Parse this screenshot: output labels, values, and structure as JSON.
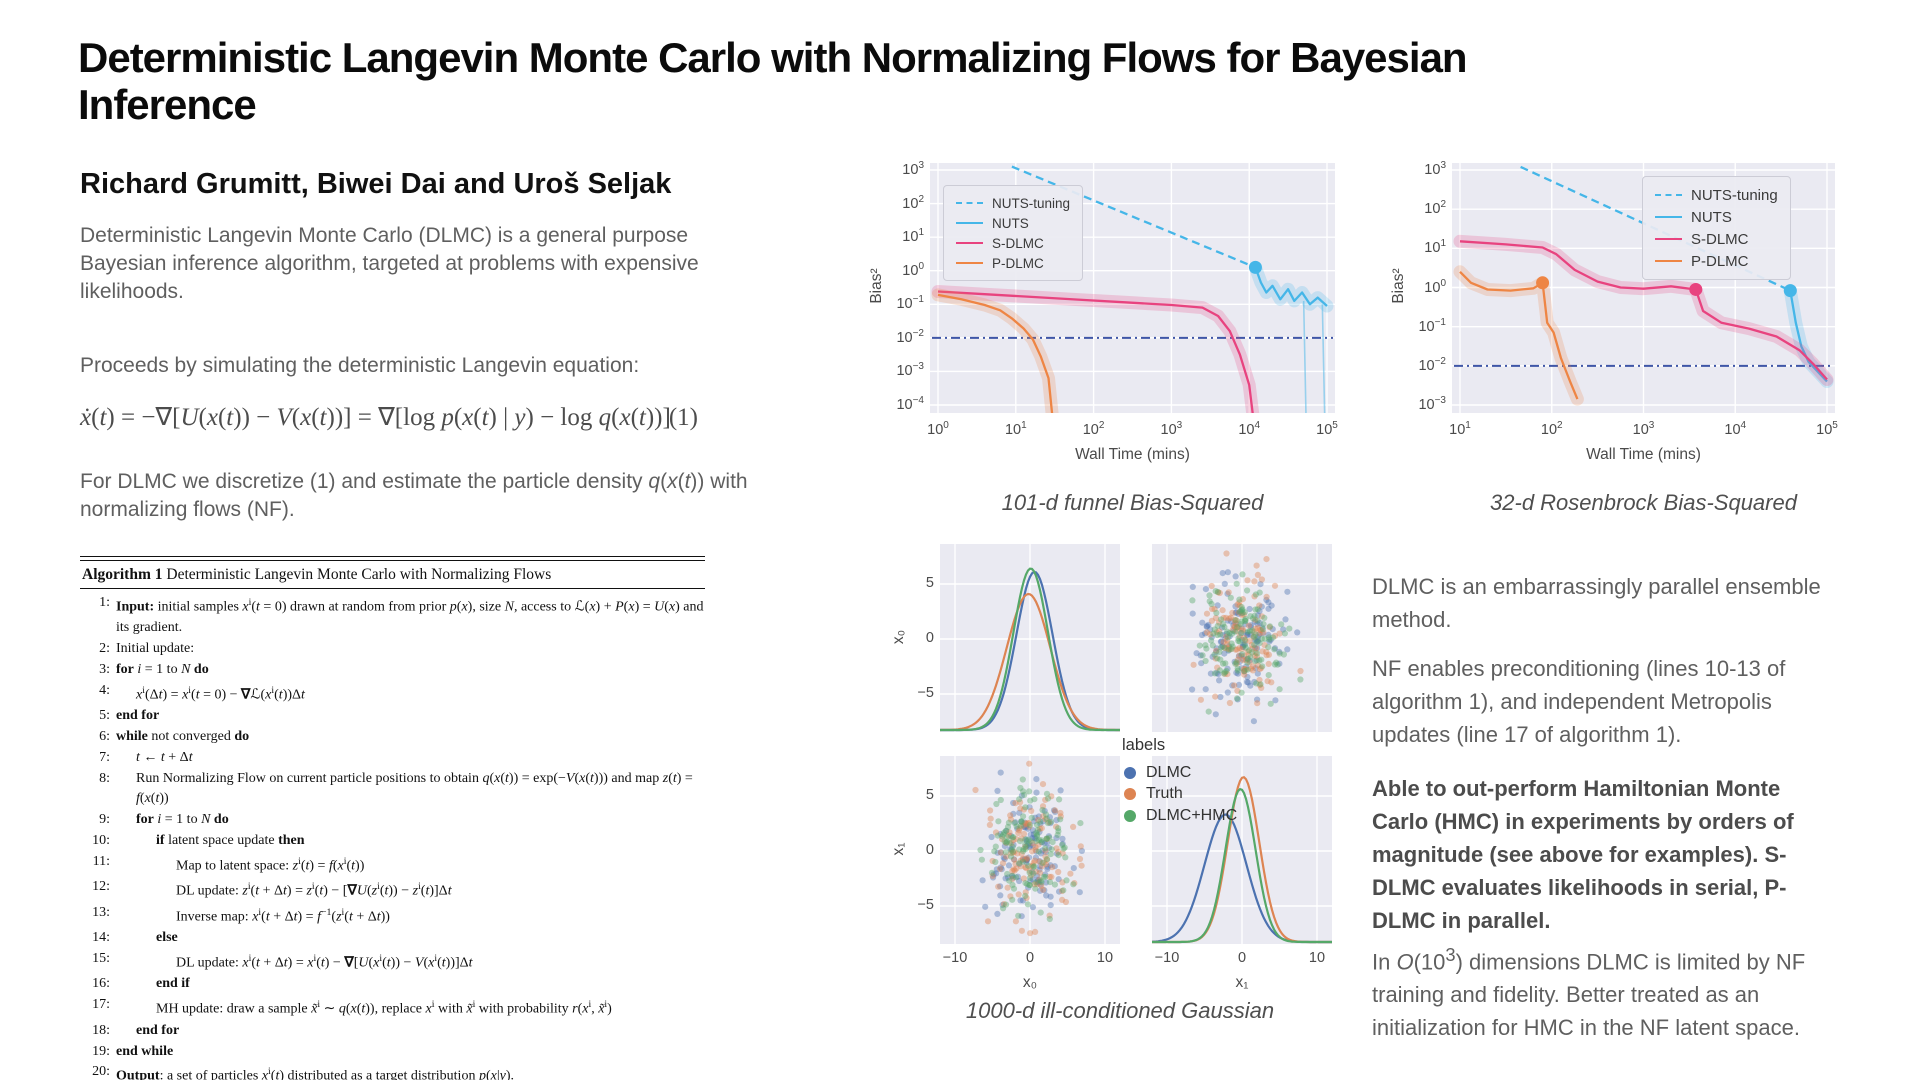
{
  "header": {
    "title": "Deterministic Langevin Monte Carlo with Normalizing Flows for Bayesian Inference",
    "authors": "Richard Grumitt, Biwei Dai and Uroš Seljak"
  },
  "left_column": {
    "p1": "Deterministic Langevin Monte Carlo (DLMC) is a general purpose Bayesian inference algorithm, targeted at problems with expensive likelihoods.",
    "p2": "Proceeds by simulating the deterministic Langevin equation:",
    "equation": "*ẋ*(*t*) = −∇[*U*(*x*(*t*)) − *V*(*x*(*t*))] = ∇[log *p*(*x*(*t*) | *y*) − log *q*(*x*(*t*))]",
    "equation_number": "(1)",
    "p3": "For DLMC we discretize (1) and estimate the particle density *q*(*x*(*t*)) with normalizing flows (NF)."
  },
  "algorithm": {
    "title_label": "Algorithm 1",
    "title_text": "Deterministic Langevin Monte Carlo with Normalizing Flows",
    "lines": [
      {
        "num": "1:",
        "indent": 0,
        "text": "**Input:** initial samples *x*^{i}(*t* = 0) drawn at random from prior *p*(*x*), size *N*, access to ℒ(*x*) + *P*(*x*) = *U*(*x*) and its gradient."
      },
      {
        "num": "2:",
        "indent": 0,
        "text": "Initial update:"
      },
      {
        "num": "3:",
        "indent": 0,
        "text": "**for** *i* = 1 to *N* **do**"
      },
      {
        "num": "4:",
        "indent": 1,
        "text": "*x*^{i}(Δ*t*) = *x*^{i}(*t* = 0) − **∇**ℒ(*x*^{i}(*t*))Δ*t*"
      },
      {
        "num": "5:",
        "indent": 0,
        "text": "**end for**"
      },
      {
        "num": "6:",
        "indent": 0,
        "text": "**while** not converged **do**"
      },
      {
        "num": "7:",
        "indent": 1,
        "text": "*t* ← *t* + Δ*t*"
      },
      {
        "num": "8:",
        "indent": 1,
        "text": "Run Normalizing Flow on current particle positions to obtain *q*(*x*(*t*)) = exp(−*V*(*x*(*t*))) and map *z*(*t*) = *f*(*x*(*t*))"
      },
      {
        "num": "9:",
        "indent": 1,
        "text": "**for** *i* = 1 to *N* **do**"
      },
      {
        "num": "10:",
        "indent": 2,
        "text": "**if** latent space update **then**"
      },
      {
        "num": "11:",
        "indent": 3,
        "text": "Map to latent space: *z*^{i}(*t*) = *f*(*x*^{i}(*t*))"
      },
      {
        "num": "12:",
        "indent": 3,
        "text": "DL update: *z*^{i}(*t* + Δ*t*) = *z*^{i}(*t*) − [**∇***U*(*z*^{i}(*t*)) − *z*^{i}(*t*)]Δ*t*"
      },
      {
        "num": "13:",
        "indent": 3,
        "text": "Inverse map: *x*^{i}(*t* + Δ*t*) = *f*^{−1}(*z*^{i}(*t* + Δ*t*))"
      },
      {
        "num": "14:",
        "indent": 2,
        "text": "**else**"
      },
      {
        "num": "15:",
        "indent": 3,
        "text": "DL update: *x*^{i}(*t* + Δ*t*) = *x*^{i}(*t*) − **∇**[*U*(*x*^{i}(*t*)) − *V*(*x*^{i}(*t*))]Δ*t*"
      },
      {
        "num": "16:",
        "indent": 2,
        "text": "**end if**"
      },
      {
        "num": "17:",
        "indent": 2,
        "text": "MH update: draw a sample *x̃*^{i} ∼ *q*(*x*(*t*)), replace *x*^{i} with *x̃*^{i} with probability *r*(*x*^{i}, *x̃*^{i})"
      },
      {
        "num": "18:",
        "indent": 1,
        "text": "**end for**"
      },
      {
        "num": "19:",
        "indent": 0,
        "text": "**end while**"
      },
      {
        "num": "20:",
        "indent": 0,
        "text": "**Output**: a set of particles *x*^{i}(*t*) distributed as a target distribution *p*(*x*|*y*)."
      }
    ]
  },
  "right_column": {
    "p1": "DLMC is an embarrassingly parallel ensemble method.",
    "p2": "NF enables preconditioning (lines 10-13 of algorithm 1), and independent Metropolis updates (line 17 of algorithm 1).",
    "p3": "Able to out-perform Hamiltonian Monte Carlo (HMC) in experiments by orders of magnitude (see above for examples). S-DLMC evaluates likelihoods in serial, P-DLMC in parallel.",
    "p4": "In *O*(10^{3}) dimensions DLMC is limited by NF training and fidelity. Better treated as an initialization for HMC in the NF latent space."
  },
  "captions": {
    "funnel": "101-d funnel Bias-Squared",
    "rosenbrock": "32-d Rosenbrock Bias-Squared",
    "gaussian": "1000-d ill-conditioned Gaussian"
  },
  "chart_data": [
    {
      "id": "funnel-bias",
      "type": "line",
      "title": "101-d funnel Bias-Squared",
      "xlabel": "Wall Time (mins)",
      "ylabel": "Bias²",
      "xscale": "log",
      "yscale": "log",
      "plot_bg": "#eaeaf2",
      "grid": true,
      "x_tick_exponents": [
        0,
        1,
        2,
        3,
        4,
        5
      ],
      "y_tick_exponents": [
        3,
        2,
        1,
        0,
        -1,
        -2,
        -3,
        -4
      ],
      "threshold_log10_bias2": -2,
      "legend": [
        "NUTS-tuning",
        "NUTS",
        "S-DLMC",
        "P-DLMC"
      ],
      "legend_position": "upper left",
      "series": [
        {
          "name": "NUTS-tuning",
          "color": "#45b6e8",
          "style": "dashed",
          "band": false,
          "log10_points": [
            [
              0.95,
              3.1
            ],
            [
              4.08,
              0.1
            ]
          ]
        },
        {
          "name": "NUTS",
          "color": "#45b6e8",
          "style": "solid",
          "band": true,
          "marker": [
            4.08,
            0.1
          ],
          "log10_points": [
            [
              4.08,
              0.1
            ],
            [
              4.15,
              -0.35
            ],
            [
              4.22,
              -0.65
            ],
            [
              4.3,
              -0.45
            ],
            [
              4.4,
              -0.85
            ],
            [
              4.5,
              -0.55
            ],
            [
              4.58,
              -0.9
            ],
            [
              4.68,
              -0.65
            ],
            [
              4.78,
              -1.0
            ],
            [
              4.88,
              -0.8
            ],
            [
              5.0,
              -1.05
            ]
          ],
          "spikes": [
            [
              [
                4.7,
                -0.9
              ],
              [
                4.73,
                -4.3
              ]
            ],
            [
              [
                4.94,
                -1.0
              ],
              [
                4.97,
                -4.3
              ]
            ]
          ]
        },
        {
          "name": "S-DLMC",
          "color": "#e8437f",
          "style": "solid",
          "band": true,
          "log10_points": [
            [
              0,
              -0.62
            ],
            [
              0.6,
              -0.7
            ],
            [
              1.2,
              -0.78
            ],
            [
              1.8,
              -0.86
            ],
            [
              2.4,
              -0.94
            ],
            [
              3.0,
              -1.02
            ],
            [
              3.4,
              -1.1
            ],
            [
              3.6,
              -1.35
            ],
            [
              3.75,
              -1.8
            ],
            [
              3.88,
              -2.5
            ],
            [
              4.0,
              -3.4
            ],
            [
              4.05,
              -4.35
            ]
          ]
        },
        {
          "name": "P-DLMC",
          "color": "#ee8544",
          "style": "solid",
          "band": true,
          "log10_points": [
            [
              0,
              -0.72
            ],
            [
              0.3,
              -0.85
            ],
            [
              0.6,
              -1.02
            ],
            [
              0.8,
              -1.18
            ],
            [
              0.95,
              -1.42
            ],
            [
              1.1,
              -1.72
            ],
            [
              1.22,
              -2.05
            ],
            [
              1.32,
              -2.55
            ],
            [
              1.42,
              -3.2
            ],
            [
              1.47,
              -4.35
            ]
          ]
        }
      ]
    },
    {
      "id": "rosenbrock-bias",
      "type": "line",
      "title": "32-d Rosenbrock Bias-Squared",
      "xlabel": "Wall Time (mins)",
      "ylabel": "Bias²",
      "xscale": "log",
      "yscale": "log",
      "plot_bg": "#eaeaf2",
      "grid": true,
      "x_tick_exponents": [
        1,
        2,
        3,
        4,
        5
      ],
      "y_tick_exponents": [
        3,
        2,
        1,
        0,
        -1,
        -2,
        -3
      ],
      "threshold_log10_bias2": -2,
      "legend": [
        "NUTS-tuning",
        "NUTS",
        "S-DLMC",
        "P-DLMC"
      ],
      "legend_position": "upper right",
      "series": [
        {
          "name": "NUTS-tuning",
          "color": "#45b6e8",
          "style": "dashed",
          "band": false,
          "log10_points": [
            [
              1.66,
              3.08
            ],
            [
              4.6,
              -0.08
            ]
          ]
        },
        {
          "name": "NUTS",
          "color": "#45b6e8",
          "style": "solid",
          "band": true,
          "marker": [
            4.6,
            -0.08
          ],
          "log10_points": [
            [
              4.6,
              -0.08
            ],
            [
              4.66,
              -0.9
            ],
            [
              4.72,
              -1.5
            ],
            [
              4.8,
              -1.9
            ],
            [
              4.9,
              -2.15
            ],
            [
              5.0,
              -2.4
            ]
          ]
        },
        {
          "name": "S-DLMC",
          "color": "#e8437f",
          "style": "solid",
          "band": true,
          "marker": [
            3.57,
            -0.05
          ],
          "log10_points": [
            [
              1.0,
              1.18
            ],
            [
              1.5,
              1.1
            ],
            [
              1.9,
              1.02
            ],
            [
              2.05,
              0.85
            ],
            [
              2.25,
              0.45
            ],
            [
              2.5,
              0.15
            ],
            [
              2.75,
              0.0
            ],
            [
              3.0,
              -0.03
            ],
            [
              3.3,
              0.03
            ],
            [
              3.57,
              -0.05
            ],
            [
              3.65,
              -0.6
            ],
            [
              3.85,
              -0.9
            ],
            [
              4.15,
              -1.05
            ],
            [
              4.45,
              -1.25
            ],
            [
              4.7,
              -1.6
            ],
            [
              4.85,
              -1.95
            ],
            [
              5.0,
              -2.35
            ]
          ]
        },
        {
          "name": "P-DLMC",
          "color": "#ee8544",
          "style": "solid",
          "band": true,
          "marker": [
            1.9,
            0.12
          ],
          "log10_points": [
            [
              1.0,
              0.4
            ],
            [
              1.12,
              0.12
            ],
            [
              1.3,
              -0.05
            ],
            [
              1.55,
              -0.08
            ],
            [
              1.8,
              -0.02
            ],
            [
              1.9,
              0.12
            ],
            [
              1.95,
              -0.9
            ],
            [
              2.02,
              -1.15
            ],
            [
              2.1,
              -1.8
            ],
            [
              2.2,
              -2.4
            ],
            [
              2.28,
              -2.85
            ]
          ]
        }
      ]
    },
    {
      "id": "gaussian-corner",
      "type": "pairplot",
      "title": "1000-d ill-conditioned Gaussian",
      "plot_bg": "#eaeaf2",
      "grid": true,
      "variables": [
        "x₀",
        "x₁"
      ],
      "x_ticks": [
        -10,
        0,
        10
      ],
      "y_ticks": [
        5,
        0,
        -5
      ],
      "legend": {
        "title": "labels",
        "entries": [
          {
            "label": "DLMC",
            "color": "#4c72b0"
          },
          {
            "label": "Truth",
            "color": "#dd8452"
          },
          {
            "label": "DLMC+HMC",
            "color": "#55a868"
          }
        ]
      },
      "kde_x0": [
        {
          "name": "DLMC",
          "color": "#4c72b0",
          "mean": 0.6,
          "std": 2.4,
          "peak": 0.93
        },
        {
          "name": "Truth",
          "color": "#dd8452",
          "mean": -0.2,
          "std": 2.9,
          "peak": 0.8
        },
        {
          "name": "DLMC+HMC",
          "color": "#55a868",
          "mean": 0.1,
          "std": 2.3,
          "peak": 0.95
        }
      ],
      "kde_x1": [
        {
          "name": "DLMC",
          "color": "#4c72b0",
          "mean": -2.2,
          "std": 2.8,
          "peak": 0.75
        },
        {
          "name": "Truth",
          "color": "#dd8452",
          "mean": 0.2,
          "std": 2.1,
          "peak": 0.97
        },
        {
          "name": "DLMC+HMC",
          "color": "#55a868",
          "mean": -0.2,
          "std": 2.0,
          "peak": 0.9
        }
      ],
      "scatter": {
        "n_per_series": 130,
        "mean": [
          0,
          0
        ],
        "std": 2.7
      }
    }
  ]
}
